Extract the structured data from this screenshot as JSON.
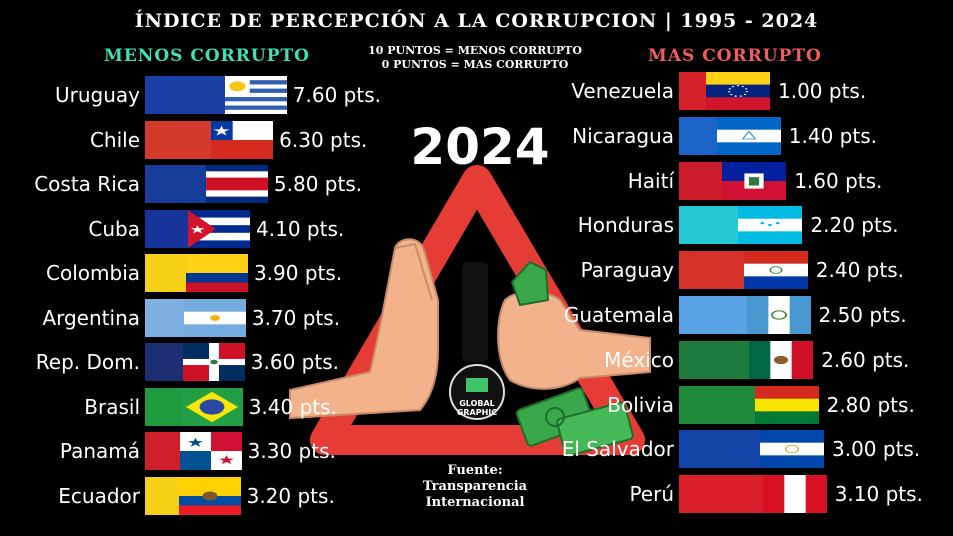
{
  "title": "ÍNDICE DE PERCEPCIÓN A LA CORRUPCION | 1995 - 2024",
  "headers": {
    "left": "MENOS CORRUPTO",
    "right": "MAS CORRUPTO"
  },
  "scale_note": {
    "line1": "10 PUNTOS = MENOS CORRUPTO",
    "line2": "0 PUNTOS = MAS CORRUPTO"
  },
  "year": "2024",
  "source": {
    "line1": "Fuente:",
    "line2": "Transparencia",
    "line3": "Internacional"
  },
  "logo_text": {
    "line1": "GLOBAL",
    "line2": "GRAPHIC"
  },
  "colors": {
    "background": "#000000",
    "left_header": "#3ee0b8",
    "right_header": "#f25c5c",
    "warning_red": "#e53d36"
  },
  "chart_data": [
    {
      "type": "bar",
      "title": "MENOS CORRUPTO",
      "categories": [
        "Uruguay",
        "Chile",
        "Costa Rica",
        "Cuba",
        "Colombia",
        "Argentina",
        "Rep. Dom.",
        "Brasil",
        "Panamá",
        "Ecuador"
      ],
      "values": [
        7.6,
        6.3,
        5.8,
        4.1,
        3.9,
        3.7,
        3.6,
        3.4,
        3.3,
        3.2
      ],
      "value_labels": [
        "7.60 pts.",
        "6.30 pts.",
        "5.80 pts.",
        "4.10 pts.",
        "3.90 pts.",
        "3.70 pts.",
        "3.60 pts.",
        "3.40 pts.",
        "3.30 pts.",
        "3.20 pts."
      ],
      "bar_colors": [
        "#1a3fa6",
        "#d43a2c",
        "#163d99",
        "#17349a",
        "#f6cf17",
        "#7fb0e3",
        "#1c2f72",
        "#1f9a3e",
        "#cf1f2b",
        "#f6cf17"
      ],
      "flags": [
        "uruguay-flag",
        "chile-flag",
        "costa-rica-flag",
        "cuba-flag",
        "colombia-flag",
        "argentina-flag",
        "dominican-republic-flag",
        "brazil-flag",
        "panama-flag",
        "ecuador-flag"
      ]
    },
    {
      "type": "bar",
      "title": "MAS CORRUPTO",
      "categories": [
        "Venezuela",
        "Nicaragua",
        "Haití",
        "Honduras",
        "Paraguay",
        "Guatemala",
        "México",
        "Bolivia",
        "El Salvador",
        "Perú"
      ],
      "values": [
        1.0,
        1.4,
        1.6,
        2.2,
        2.4,
        2.5,
        2.6,
        2.8,
        3.0,
        3.1
      ],
      "value_labels": [
        "1.00 pts.",
        "1.40 pts.",
        "1.60 pts.",
        "2.20 pts.",
        "2.40 pts.",
        "2.50 pts.",
        "2.60 pts.",
        "2.80 pts.",
        "3.00 pts.",
        "3.10 pts."
      ],
      "bar_colors": [
        "#d5202a",
        "#1b63c4",
        "#cc1b2b",
        "#26c8d4",
        "#d7322a",
        "#5aa3e6",
        "#1b7a3c",
        "#1e8a3a",
        "#1345a8",
        "#d91f2a"
      ],
      "flags": [
        "venezuela-flag",
        "nicaragua-flag",
        "haiti-flag",
        "honduras-flag",
        "paraguay-flag",
        "guatemala-flag",
        "mexico-flag",
        "bolivia-flag",
        "el-salvador-flag",
        "peru-flag"
      ]
    }
  ]
}
